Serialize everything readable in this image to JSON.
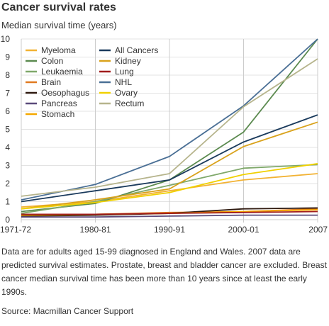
{
  "title": "Cancer survival rates",
  "subtitle": "Median survival time (years)",
  "note": "Data are for adults aged 15-99 diagnosed in England and Wales. 2007 data are predicted survival estimates. Prostate, breast and bladder cancer are excluded. Breast cancer median survival time has been more than 10 years since at least the early 1990s.",
  "source": "Source: Macmillan Cancer Support",
  "chart_data": {
    "type": "line",
    "x": [
      "1971-72",
      "1980-81",
      "1990-91",
      "2000-01",
      "2007"
    ],
    "ylim": [
      0,
      10
    ],
    "yticks": [
      0,
      1,
      2,
      3,
      4,
      5,
      6,
      7,
      8,
      9,
      10
    ],
    "grid": true,
    "legend_position": "top-left",
    "series": [
      {
        "name": "Myeloma",
        "color": "#f2b233",
        "values": [
          0.7,
          1.0,
          1.6,
          2.2,
          2.55
        ]
      },
      {
        "name": "Colon",
        "color": "#5b8a4f",
        "values": [
          0.45,
          0.9,
          2.2,
          4.85,
          10.0
        ]
      },
      {
        "name": "Leukaemia",
        "color": "#7fa86a",
        "values": [
          0.35,
          1.0,
          1.9,
          2.85,
          3.05
        ]
      },
      {
        "name": "Brain",
        "color": "#e07a20",
        "values": [
          0.2,
          0.3,
          0.4,
          0.45,
          0.6
        ]
      },
      {
        "name": "Oesophagus",
        "color": "#2f1a10",
        "values": [
          0.2,
          0.25,
          0.35,
          0.6,
          0.65
        ]
      },
      {
        "name": "Pancreas",
        "color": "#5a4a7a",
        "values": [
          0.15,
          0.15,
          0.2,
          0.25,
          0.25
        ]
      },
      {
        "name": "Stomach",
        "color": "#f5a800",
        "values": [
          0.25,
          0.3,
          0.35,
          0.45,
          0.55
        ]
      },
      {
        "name": "All Cancers",
        "color": "#1a3a5c",
        "values": [
          1.0,
          1.6,
          2.2,
          4.3,
          5.8
        ]
      },
      {
        "name": "Kidney",
        "color": "#d9a21b",
        "values": [
          0.6,
          1.1,
          1.7,
          4.05,
          5.4
        ]
      },
      {
        "name": "Lung",
        "color": "#a01c1c",
        "values": [
          0.3,
          0.3,
          0.35,
          0.4,
          0.45
        ]
      },
      {
        "name": "NHL",
        "color": "#4a6f95",
        "values": [
          1.1,
          1.95,
          3.5,
          6.3,
          10.0
        ]
      },
      {
        "name": "Ovary",
        "color": "#f0d000",
        "values": [
          0.6,
          0.95,
          1.5,
          2.5,
          3.1
        ]
      },
      {
        "name": "Rectum",
        "color": "#b6b48c",
        "values": [
          1.3,
          1.8,
          2.55,
          6.25,
          8.9
        ]
      }
    ]
  }
}
